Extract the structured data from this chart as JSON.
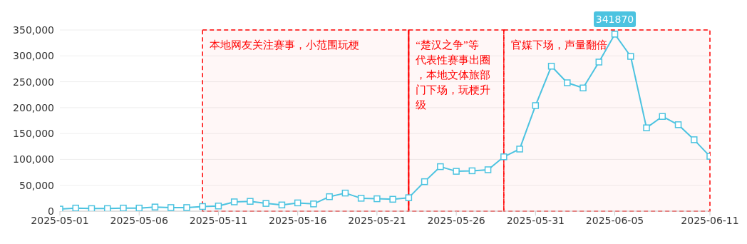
{
  "chart_data": {
    "type": "line",
    "x": [
      "2025-05-01",
      "2025-05-02",
      "2025-05-03",
      "2025-05-04",
      "2025-05-05",
      "2025-05-06",
      "2025-05-07",
      "2025-05-08",
      "2025-05-09",
      "2025-05-10",
      "2025-05-11",
      "2025-05-12",
      "2025-05-13",
      "2025-05-14",
      "2025-05-15",
      "2025-05-16",
      "2025-05-17",
      "2025-05-18",
      "2025-05-19",
      "2025-05-20",
      "2025-05-21",
      "2025-05-22",
      "2025-05-23",
      "2025-05-24",
      "2025-05-25",
      "2025-05-26",
      "2025-05-27",
      "2025-05-28",
      "2025-05-29",
      "2025-05-30",
      "2025-05-31",
      "2025-06-01",
      "2025-06-02",
      "2025-06-03",
      "2025-06-04",
      "2025-06-05",
      "2025-06-06",
      "2025-06-07",
      "2025-06-08",
      "2025-06-09",
      "2025-06-10",
      "2025-06-11"
    ],
    "series": [
      {
        "color": "#4cc3e0",
        "values": [
          4000,
          6000,
          5000,
          5000,
          6000,
          6000,
          8000,
          7000,
          7000,
          9000,
          10000,
          18000,
          19000,
          15000,
          12000,
          16000,
          14000,
          28000,
          35000,
          25000,
          24000,
          23000,
          26000,
          57000,
          86000,
          77000,
          78000,
          80000,
          105000,
          120000,
          204000,
          280000,
          248000,
          238000,
          288000,
          341870,
          299000,
          161000,
          183000,
          167000,
          138000,
          106000
        ],
        "value_labels": [
          null,
          null,
          null,
          null,
          null,
          null,
          null,
          null,
          null,
          null,
          null,
          null,
          null,
          null,
          null,
          null,
          null,
          null,
          null,
          null,
          null,
          null,
          null,
          null,
          null,
          null,
          null,
          null,
          null,
          null,
          null,
          null,
          null,
          null,
          null,
          "341870",
          null,
          null,
          null,
          null,
          null,
          null
        ]
      }
    ],
    "xlim": [
      "2025-05-01",
      "2025-06-11"
    ],
    "xticks": [
      "2025-05-01",
      "2025-05-06",
      "2025-05-11",
      "2025-05-16",
      "2025-05-21",
      "2025-05-26",
      "2025-05-31",
      "2025-06-05",
      "2025-06-11"
    ],
    "ylim": [
      0,
      350000
    ],
    "yticks": [
      {
        "value": 0,
        "label": "0"
      },
      {
        "value": 50000,
        "label": "50,000"
      },
      {
        "value": 100000,
        "label": "100,000"
      },
      {
        "value": 150000,
        "label": "150,000"
      },
      {
        "value": 200000,
        "label": "200,000"
      },
      {
        "value": 250000,
        "label": "250,000"
      },
      {
        "value": 300000,
        "label": "300,000"
      },
      {
        "value": 350000,
        "label": "350,000"
      }
    ],
    "grid": "y",
    "marker": "square",
    "line_style": "solid",
    "legend": false,
    "bands": [
      {
        "axis": "x",
        "from": "2025-05-10",
        "to": "2025-05-23",
        "label": "本地网友关注赛事，小范围玩梗",
        "color": "#ff0000"
      },
      {
        "axis": "x",
        "from": "2025-05-23",
        "to": "2025-05-29",
        "label": "“楚汉之争”等代表性赛事出圈，本地文体旅部门下场，玩梗升级",
        "color": "#ff0000"
      },
      {
        "axis": "x",
        "from": "2025-05-29",
        "to": "2025-06-11",
        "label": "官媒下场，声量翻倍",
        "color": "#ff0000"
      }
    ],
    "ref_lines": [
      {
        "axis": "x",
        "value": "2025-05-23",
        "color": "#ff0000",
        "line_style": "solid"
      }
    ]
  }
}
